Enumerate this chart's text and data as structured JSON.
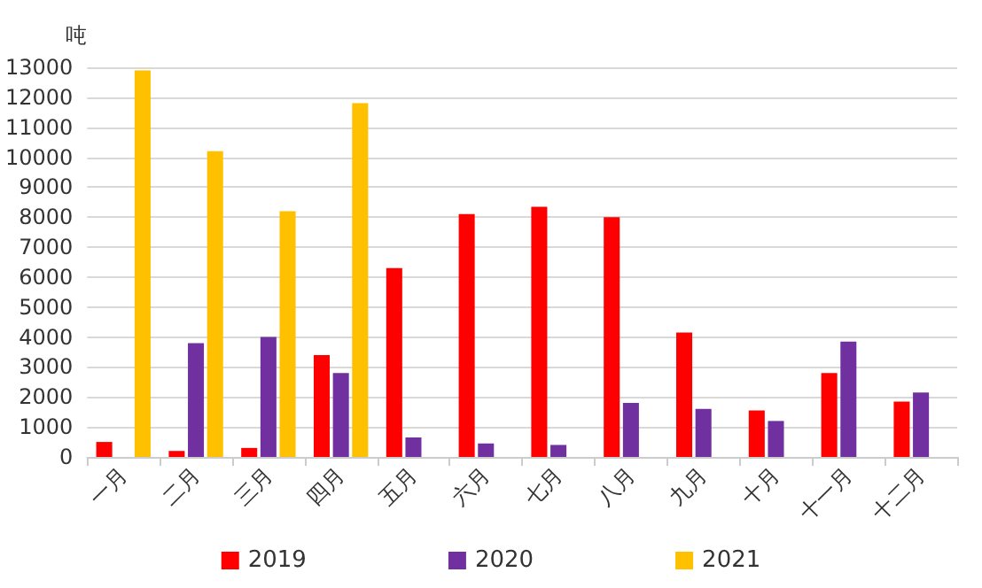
{
  "chart_data": {
    "type": "bar",
    "ylabel": "吨",
    "categories": [
      "一月",
      "二月",
      "三月",
      "四月",
      "五月",
      "六月",
      "七月",
      "八月",
      "九月",
      "十月",
      "十一月",
      "十二月"
    ],
    "series": [
      {
        "name": "2019",
        "color": "#ff0000",
        "values": [
          500,
          200,
          300,
          3400,
          6300,
          8100,
          8350,
          8000,
          4150,
          1550,
          2800,
          1850
        ]
      },
      {
        "name": "2020",
        "color": "#7030a0",
        "values": [
          null,
          3800,
          4000,
          2800,
          650,
          450,
          400,
          1800,
          1600,
          1200,
          3850,
          2150
        ]
      },
      {
        "name": "2021",
        "color": "#ffc000",
        "values": [
          12900,
          10200,
          8200,
          11800,
          null,
          null,
          null,
          null,
          null,
          null,
          null,
          null
        ]
      }
    ],
    "ylim": [
      0,
      13000
    ],
    "yticks": [
      0,
      1000,
      2000,
      3000,
      4000,
      5000,
      6000,
      7000,
      8000,
      9000,
      10000,
      11000,
      12000,
      13000
    ],
    "grid": "y",
    "legend": "bottom"
  }
}
